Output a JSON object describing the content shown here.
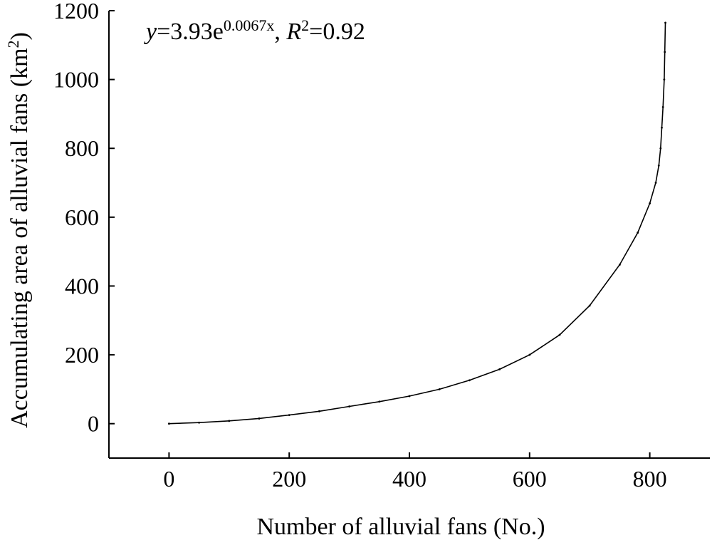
{
  "chart_data": {
    "type": "scatter",
    "title": "",
    "xlabel": "Number of alluvial fans (No.)",
    "ylabel_main": "Accumulating area of alluvial fans (km",
    "ylabel_sup": "2",
    "ylabel_close": ")",
    "xlim": [
      -100,
      900
    ],
    "ylim": [
      -100,
      1200
    ],
    "xticks": [
      0,
      200,
      400,
      600,
      800
    ],
    "yticks": [
      0,
      200,
      400,
      600,
      800,
      1000,
      1200
    ],
    "grid": false,
    "legend": "none",
    "annotation": {
      "y_var": "y",
      "eq_mid": "=3.93e",
      "exponent": "0.0067x",
      "sep": ", ",
      "r_var": "R",
      "r_sup": "2",
      "r_val": "=0.92"
    },
    "series": [
      {
        "points": [
          [
            0,
            0
          ],
          [
            50,
            3
          ],
          [
            100,
            8
          ],
          [
            150,
            15
          ],
          [
            200,
            25
          ],
          [
            250,
            36
          ],
          [
            300,
            50
          ],
          [
            350,
            64
          ],
          [
            400,
            80
          ],
          [
            450,
            100
          ],
          [
            500,
            126
          ],
          [
            550,
            158
          ],
          [
            600,
            200
          ],
          [
            650,
            258
          ],
          [
            700,
            343
          ],
          [
            750,
            462
          ],
          [
            780,
            555
          ],
          [
            800,
            640
          ],
          [
            810,
            700
          ],
          [
            815,
            750
          ],
          [
            818,
            800
          ],
          [
            820,
            860
          ],
          [
            822,
            920
          ],
          [
            824,
            1000
          ],
          [
            825,
            1080
          ],
          [
            826,
            1165
          ]
        ]
      }
    ]
  }
}
